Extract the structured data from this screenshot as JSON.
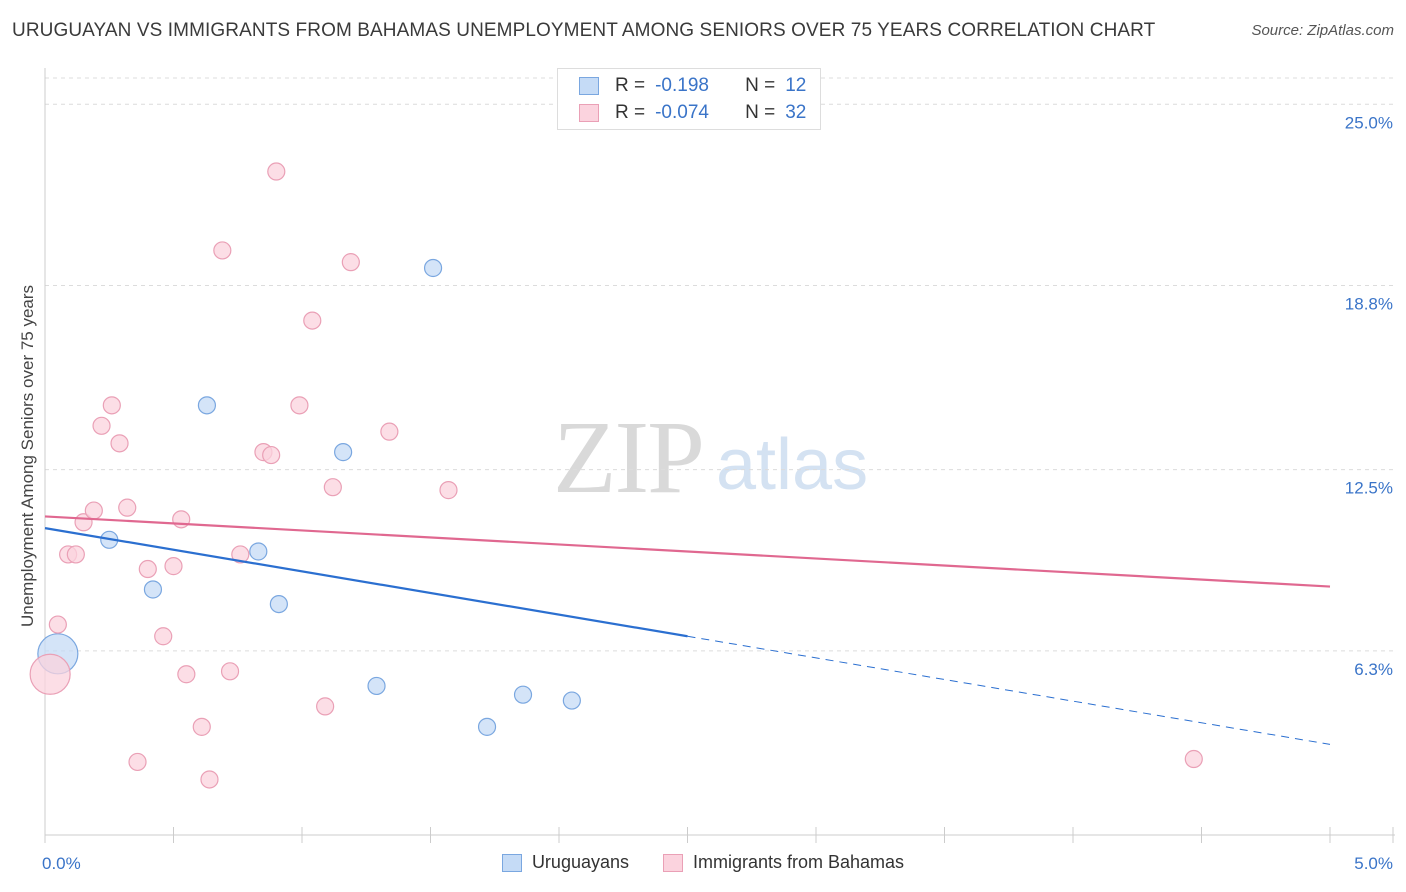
{
  "header": {
    "title": "URUGUAYAN VS IMMIGRANTS FROM BAHAMAS UNEMPLOYMENT AMONG SENIORS OVER 75 YEARS CORRELATION CHART",
    "source": "Source: ZipAtlas.com"
  },
  "watermark": {
    "zip": "ZIP",
    "atlas": "atlas"
  },
  "stats": {
    "rows": [
      {
        "r_label": "R =",
        "r_value": "-0.198",
        "n_label": "N =",
        "n_value": "12",
        "color": "#a8c8f0"
      },
      {
        "r_label": "R =",
        "r_value": "-0.074",
        "n_label": "N =",
        "n_value": "32",
        "color": "#f6b8c8"
      }
    ]
  },
  "legend": {
    "items": [
      {
        "label": "Uruguayans",
        "color": "#a8c8f0"
      },
      {
        "label": "Immigrants from Bahamas",
        "color": "#f6b8c8"
      }
    ]
  },
  "chart_data": {
    "type": "scatter",
    "title": "URUGUAYAN VS IMMIGRANTS FROM BAHAMAS UNEMPLOYMENT AMONG SENIORS OVER 75 YEARS CORRELATION CHART",
    "xlabel": "",
    "ylabel": "Unemployment Among Seniors over 75 years",
    "xlim": [
      0,
      5
    ],
    "ylim": [
      0,
      25.9
    ],
    "x_tick_labels": [
      "0.0%",
      "5.0%"
    ],
    "y_ticks": [
      6.3,
      12.5,
      18.8,
      25.0
    ],
    "y_tick_labels": [
      "6.3%",
      "12.5%",
      "18.8%",
      "25.0%"
    ],
    "colors": {
      "uruguayans_fill": "#a8c8f0",
      "uruguayans_line": "#2b6fd0",
      "bahamas_fill": "#f6b8c8",
      "bahamas_line": "#e06890",
      "axis_label": "#3a74c8"
    },
    "series": [
      {
        "name": "Uruguayans",
        "points": [
          {
            "x": 0.05,
            "y": 6.2,
            "big": true
          },
          {
            "x": 0.25,
            "y": 10.1
          },
          {
            "x": 0.42,
            "y": 8.4
          },
          {
            "x": 0.63,
            "y": 14.7
          },
          {
            "x": 0.83,
            "y": 9.7
          },
          {
            "x": 0.91,
            "y": 7.9
          },
          {
            "x": 1.16,
            "y": 13.1
          },
          {
            "x": 1.29,
            "y": 5.1
          },
          {
            "x": 1.51,
            "y": 19.4
          },
          {
            "x": 1.72,
            "y": 3.7
          },
          {
            "x": 1.86,
            "y": 4.8
          },
          {
            "x": 2.05,
            "y": 4.6
          }
        ],
        "trend": {
          "x0": 0,
          "y0": 10.5,
          "x_solid_end": 2.5,
          "x1": 5,
          "y1": 3.1
        }
      },
      {
        "name": "Immigrants from Bahamas",
        "points": [
          {
            "x": 0.02,
            "y": 5.5,
            "big": true
          },
          {
            "x": 0.05,
            "y": 7.2
          },
          {
            "x": 0.09,
            "y": 9.6
          },
          {
            "x": 0.12,
            "y": 9.6
          },
          {
            "x": 0.15,
            "y": 10.7
          },
          {
            "x": 0.19,
            "y": 11.1
          },
          {
            "x": 0.22,
            "y": 14.0
          },
          {
            "x": 0.26,
            "y": 14.7
          },
          {
            "x": 0.29,
            "y": 13.4
          },
          {
            "x": 0.32,
            "y": 11.2
          },
          {
            "x": 0.36,
            "y": 2.5
          },
          {
            "x": 0.4,
            "y": 9.1
          },
          {
            "x": 0.46,
            "y": 6.8
          },
          {
            "x": 0.5,
            "y": 9.2
          },
          {
            "x": 0.53,
            "y": 10.8
          },
          {
            "x": 0.55,
            "y": 5.5
          },
          {
            "x": 0.61,
            "y": 3.7
          },
          {
            "x": 0.64,
            "y": 1.9
          },
          {
            "x": 0.69,
            "y": 20.0
          },
          {
            "x": 0.72,
            "y": 5.6
          },
          {
            "x": 0.76,
            "y": 9.6
          },
          {
            "x": 0.85,
            "y": 13.1
          },
          {
            "x": 0.88,
            "y": 13.0
          },
          {
            "x": 0.9,
            "y": 22.7
          },
          {
            "x": 0.99,
            "y": 14.7
          },
          {
            "x": 1.04,
            "y": 17.6
          },
          {
            "x": 1.09,
            "y": 4.4
          },
          {
            "x": 1.12,
            "y": 11.9
          },
          {
            "x": 1.19,
            "y": 19.6
          },
          {
            "x": 1.34,
            "y": 13.8
          },
          {
            "x": 1.57,
            "y": 11.8
          },
          {
            "x": 4.47,
            "y": 2.6
          }
        ],
        "trend": {
          "x0": 0,
          "y0": 10.9,
          "x1": 5,
          "y1": 8.5
        }
      }
    ]
  }
}
